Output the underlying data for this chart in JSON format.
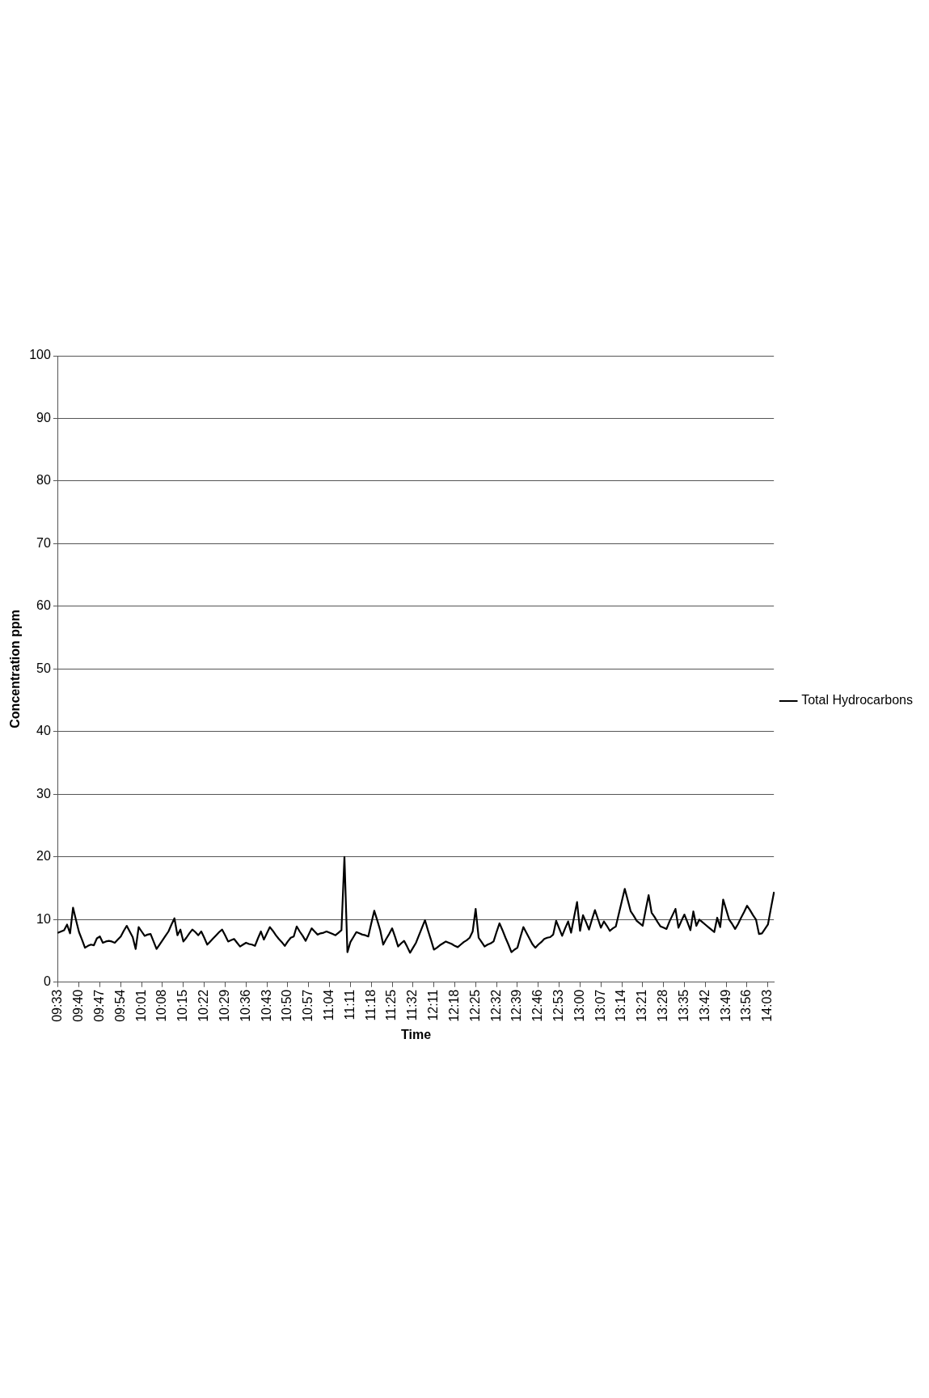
{
  "chart_data": {
    "type": "line",
    "xlabel": "Time",
    "ylabel": "Concentration ppm",
    "legend": "right",
    "grid": "y",
    "marker": "none",
    "line_style": "solid",
    "categories": [
      "09:33",
      null,
      null,
      null,
      null,
      null,
      null,
      "09:40",
      null,
      null,
      null,
      null,
      null,
      null,
      "09:47",
      null,
      null,
      null,
      null,
      null,
      null,
      "09:54",
      null,
      null,
      null,
      null,
      null,
      null,
      "10:01",
      null,
      null,
      null,
      null,
      null,
      null,
      "10:08",
      null,
      null,
      null,
      null,
      null,
      null,
      "10:15",
      null,
      null,
      null,
      null,
      null,
      null,
      "10:22",
      null,
      null,
      null,
      null,
      null,
      null,
      "10:29",
      null,
      null,
      null,
      null,
      null,
      null,
      "10:36",
      null,
      null,
      null,
      null,
      null,
      null,
      "10:43",
      null,
      null,
      null,
      null,
      null,
      null,
      "10:50",
      null,
      null,
      null,
      null,
      null,
      null,
      "10:57",
      null,
      null,
      null,
      null,
      null,
      null,
      "11:04",
      null,
      null,
      null,
      null,
      null,
      null,
      "11:11",
      null,
      null,
      null,
      null,
      null,
      null,
      "11:18",
      null,
      null,
      null,
      null,
      null,
      null,
      "11:25",
      null,
      null,
      null,
      null,
      null,
      null,
      "11:32",
      null,
      null,
      null,
      null,
      null,
      null,
      "12:11",
      null,
      null,
      null,
      null,
      null,
      null,
      "12:18",
      null,
      null,
      null,
      null,
      null,
      null,
      "12:25",
      null,
      null,
      null,
      null,
      null,
      null,
      "12:32",
      null,
      null,
      null,
      null,
      null,
      null,
      "12:39",
      null,
      null,
      null,
      null,
      null,
      null,
      "12:46",
      null,
      null,
      null,
      null,
      null,
      null,
      "12:53",
      null,
      null,
      null,
      null,
      null,
      null,
      "13:00",
      null,
      null,
      null,
      null,
      null,
      null,
      "13:07",
      null,
      null,
      null,
      null,
      null,
      null,
      "13:14",
      null,
      null,
      null,
      null,
      null,
      null,
      "13:21",
      null,
      null,
      null,
      null,
      null,
      null,
      "13:28",
      null,
      null,
      null,
      null,
      null,
      null,
      "13:35",
      null,
      null,
      null,
      null,
      null,
      null,
      "13:42",
      null,
      null,
      null,
      null,
      null,
      null,
      "13:49",
      null,
      null,
      null,
      null,
      null,
      null,
      "13:56",
      null,
      null,
      null,
      null,
      null,
      null,
      "14:03",
      null,
      null
    ],
    "ylim": [
      0,
      100
    ],
    "yticks": [
      0,
      10,
      20,
      30,
      40,
      50,
      60,
      70,
      80,
      90,
      100
    ],
    "series": [
      {
        "name": "Total Hydrocarbons",
        "color": "#000000",
        "values": [
          7.9,
          8.1,
          8.3,
          9.2,
          7.8,
          11.9,
          9.9,
          8.0,
          6.8,
          5.5,
          5.8,
          6.0,
          5.9,
          7.0,
          7.3,
          6.3,
          6.5,
          6.6,
          6.5,
          6.3,
          6.8,
          7.3,
          8.2,
          9.0,
          8.1,
          7.2,
          5.3,
          8.8,
          8.1,
          7.4,
          7.6,
          7.7,
          6.5,
          5.3,
          6.0,
          6.7,
          7.4,
          8.1,
          9.2,
          10.2,
          7.5,
          8.4,
          6.5,
          7.1,
          7.8,
          8.4,
          8.0,
          7.5,
          8.1,
          7.1,
          6.0,
          6.5,
          7.0,
          7.5,
          8.0,
          8.4,
          7.5,
          6.5,
          6.7,
          6.9,
          6.3,
          5.7,
          6.0,
          6.3,
          6.1,
          6.0,
          5.8,
          7.0,
          8.1,
          6.8,
          7.8,
          8.8,
          8.2,
          7.5,
          6.9,
          6.4,
          5.8,
          6.5,
          7.1,
          7.3,
          8.9,
          8.1,
          7.4,
          6.6,
          7.6,
          8.6,
          8.1,
          7.6,
          7.8,
          7.9,
          8.1,
          7.9,
          7.7,
          7.5,
          7.9,
          8.3,
          20.0,
          4.8,
          6.4,
          7.2,
          8.0,
          7.8,
          7.6,
          7.5,
          7.3,
          9.4,
          11.4,
          9.9,
          8.3,
          6.0,
          6.9,
          7.7,
          8.6,
          7.2,
          5.7,
          6.2,
          6.6,
          5.7,
          4.7,
          5.5,
          6.3,
          7.5,
          8.7,
          9.9,
          8.3,
          6.8,
          5.2,
          5.5,
          5.9,
          6.2,
          6.5,
          6.3,
          6.1,
          5.8,
          5.6,
          6.0,
          6.4,
          6.7,
          7.1,
          8.1,
          11.7,
          7.1,
          6.4,
          5.7,
          6.0,
          6.2,
          6.5,
          8.0,
          9.4,
          8.3,
          7.1,
          6.0,
          4.8,
          5.2,
          5.5,
          7.2,
          8.8,
          7.9,
          7.0,
          6.1,
          5.5,
          6.0,
          6.4,
          6.9,
          7.1,
          7.2,
          7.6,
          9.8,
          8.6,
          7.4,
          8.6,
          9.7,
          7.9,
          10.4,
          12.8,
          8.2,
          10.7,
          9.6,
          8.4,
          10.0,
          11.5,
          10.1,
          8.7,
          9.7,
          9.0,
          8.2,
          8.6,
          8.9,
          10.9,
          12.9,
          14.9,
          13.1,
          11.3,
          10.6,
          9.8,
          9.4,
          9.0,
          11.5,
          13.9,
          11.1,
          10.4,
          9.6,
          8.9,
          8.7,
          8.5,
          9.7,
          10.7,
          11.7,
          8.7,
          9.8,
          10.8,
          9.6,
          8.3,
          11.3,
          9.0,
          10.0,
          9.6,
          9.2,
          8.8,
          8.4,
          8.0,
          10.3,
          8.8,
          13.2,
          11.6,
          10.0,
          9.3,
          8.5,
          9.3,
          10.3,
          11.2,
          12.2,
          11.5,
          10.7,
          10.0,
          7.7,
          7.8,
          8.5,
          9.2,
          11.8,
          14.3
        ]
      }
    ]
  }
}
